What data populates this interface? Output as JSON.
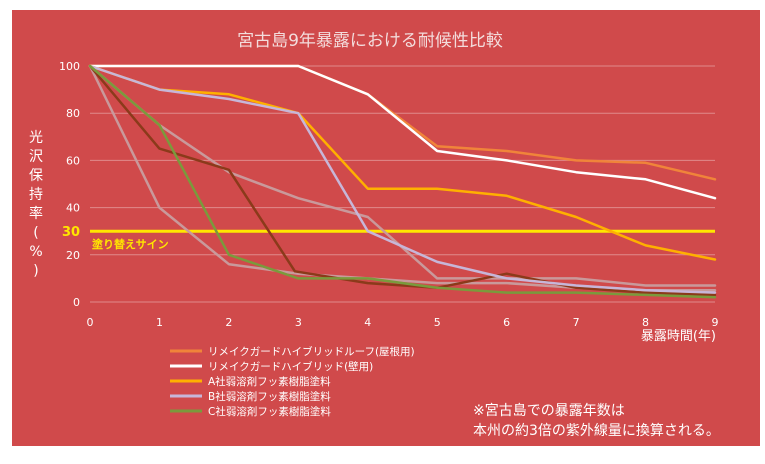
{
  "chart_data": {
    "type": "line",
    "title": "宮古島9年暴露における耐候性比較",
    "xlabel": "暴露時間(年)",
    "ylabel": "光沢保持率(%)",
    "xlim": [
      0,
      9
    ],
    "ylim": [
      0,
      100
    ],
    "x_ticks": [
      "0",
      "1",
      "2",
      "3",
      "4",
      "5",
      "6",
      "7",
      "8",
      "9"
    ],
    "y_ticks": [
      "0",
      "20",
      "40",
      "60",
      "80",
      "100"
    ],
    "grid": true,
    "legend_position": "bottom-left",
    "threshold": {
      "value": 30,
      "value_label": "30",
      "label": "塗り替えサイン",
      "color": "#ffe600"
    },
    "note_lines": [
      "※宮古島での暴露年数は",
      "本州の約3倍の紫外線量に換算される。"
    ],
    "series": [
      {
        "name": "リメイクガードハイブリッドルーフ(屋根用)",
        "color": "#f0843a",
        "legend": true,
        "x": [
          0,
          1,
          2,
          3,
          4,
          5,
          6,
          7,
          8,
          9
        ],
        "y": [
          100,
          100,
          100,
          100,
          88,
          66,
          64,
          60,
          59,
          52
        ]
      },
      {
        "name": "リメイクガードハイブリッド(壁用)",
        "color": "#ffffff",
        "legend": true,
        "x": [
          0,
          1,
          2,
          3,
          4,
          5,
          6,
          7,
          8,
          9
        ],
        "y": [
          100,
          100,
          100,
          100,
          88,
          64,
          60,
          55,
          52,
          44
        ]
      },
      {
        "name": "A社弱溶剤フッ素樹脂塗料",
        "color": "#ffb000",
        "legend": true,
        "x": [
          0,
          1,
          2,
          3,
          4,
          5,
          6,
          7,
          8,
          9
        ],
        "y": [
          100,
          90,
          88,
          80,
          48,
          48,
          45,
          36,
          24,
          18
        ]
      },
      {
        "name": "B社弱溶剤フッ素樹脂塗料",
        "color": "#c7b6d8",
        "legend": true,
        "x": [
          0,
          1,
          2,
          3,
          4,
          5,
          6,
          7,
          8,
          9
        ],
        "y": [
          100,
          90,
          86,
          80,
          30,
          17,
          10,
          7,
          5,
          4
        ]
      },
      {
        "name": "C社弱溶剤フッ素樹脂塗料",
        "color": "#7a9a3c",
        "legend": true,
        "x": [
          0,
          1,
          2,
          3,
          4,
          5,
          6,
          7,
          8,
          9
        ],
        "y": [
          100,
          75,
          20,
          10,
          10,
          6,
          4,
          4,
          3,
          2
        ]
      },
      {
        "name": "",
        "color": "#c9999b",
        "legend": false,
        "x": [
          0,
          1,
          2,
          3,
          4,
          5,
          6,
          7,
          8,
          9
        ],
        "y": [
          100,
          75,
          55,
          44,
          36,
          10,
          10,
          10,
          7,
          7
        ]
      },
      {
        "name": "",
        "color": "#c9999b",
        "legend": false,
        "x": [
          0,
          1,
          2,
          3,
          4,
          5,
          6,
          7,
          8,
          9
        ],
        "y": [
          100,
          40,
          16,
          12,
          10,
          8,
          8,
          6,
          5,
          5
        ]
      },
      {
        "name": "",
        "color": "#8b3a1a",
        "legend": false,
        "x": [
          0,
          1,
          2,
          2.95,
          4,
          5,
          6,
          7,
          8,
          9
        ],
        "y": [
          100,
          65,
          56,
          13,
          8,
          6,
          12,
          6,
          4,
          3
        ]
      }
    ]
  }
}
